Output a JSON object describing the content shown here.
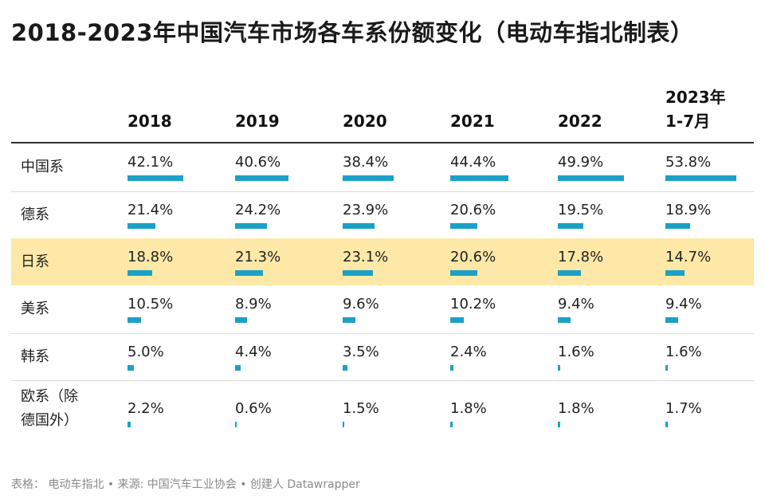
{
  "title": "2018-2023年中国汽车市场各车系份额变化（电动车指北制表）",
  "chart_data": {
    "type": "table",
    "columns": [
      [
        "2018"
      ],
      [
        "2019"
      ],
      [
        "2020"
      ],
      [
        "2021"
      ],
      [
        "2022"
      ],
      [
        "2023年",
        "1-7月"
      ]
    ],
    "rows": [
      {
        "label": [
          "中国系"
        ],
        "values": [
          42.1,
          40.6,
          38.4,
          44.4,
          49.9,
          53.8
        ],
        "display": [
          "42.1%",
          "40.6%",
          "38.4%",
          "44.4%",
          "49.9%",
          "53.8%"
        ],
        "highlight": false
      },
      {
        "label": [
          "德系"
        ],
        "values": [
          21.4,
          24.2,
          23.9,
          20.6,
          19.5,
          18.9
        ],
        "display": [
          "21.4%",
          "24.2%",
          "23.9%",
          "20.6%",
          "19.5%",
          "18.9%"
        ],
        "highlight": false
      },
      {
        "label": [
          "日系"
        ],
        "values": [
          18.8,
          21.3,
          23.1,
          20.6,
          17.8,
          14.7
        ],
        "display": [
          "18.8%",
          "21.3%",
          "23.1%",
          "20.6%",
          "17.8%",
          "14.7%"
        ],
        "highlight": true
      },
      {
        "label": [
          "美系"
        ],
        "values": [
          10.5,
          8.9,
          9.6,
          10.2,
          9.4,
          9.4
        ],
        "display": [
          "10.5%",
          "8.9%",
          "9.6%",
          "10.2%",
          "9.4%",
          "9.4%"
        ],
        "highlight": false
      },
      {
        "label": [
          "韩系"
        ],
        "values": [
          5.0,
          4.4,
          3.5,
          2.4,
          1.6,
          1.6
        ],
        "display": [
          "5.0%",
          "4.4%",
          "3.5%",
          "2.4%",
          "1.6%",
          "1.6%"
        ],
        "highlight": false
      },
      {
        "label": [
          "欧系（除",
          "德国外）"
        ],
        "values": [
          2.2,
          0.6,
          1.5,
          1.8,
          1.8,
          1.7
        ],
        "display": [
          "2.2%",
          "0.6%",
          "1.5%",
          "1.8%",
          "1.8%",
          "1.7%"
        ],
        "highlight": false
      }
    ],
    "bar_max": 53.8,
    "bar_color": "#1ba1c6",
    "highlight_color": "#fde8a8"
  },
  "footer": "表格： 电动车指北 • 来源: 中国汽车工业协会 • 创建人 Datawrapper"
}
